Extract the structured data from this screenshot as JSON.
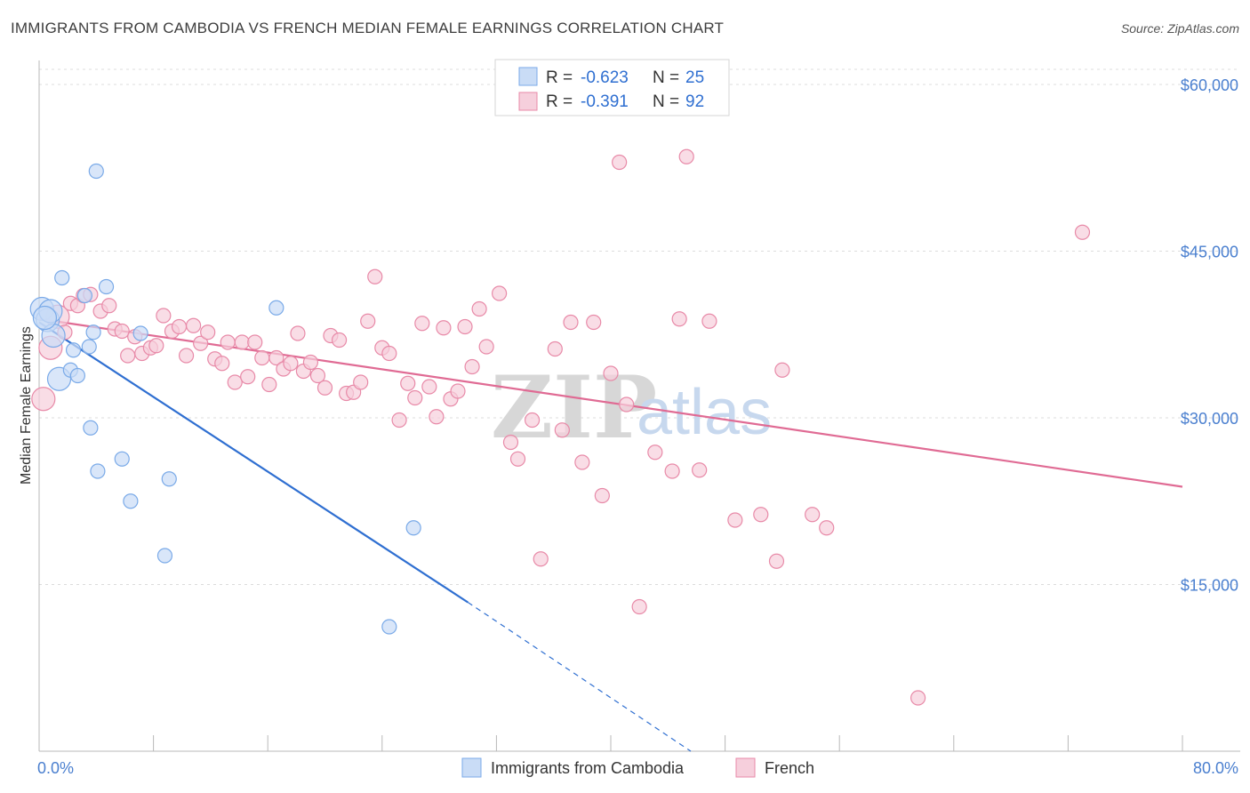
{
  "title": "IMMIGRANTS FROM CAMBODIA VS FRENCH MEDIAN FEMALE EARNINGS CORRELATION CHART",
  "source": "Source: ZipAtlas.com",
  "colors": {
    "blue": "#7aaae8",
    "blue_fill": "#c9dcf6",
    "blue_line": "#2f6fd1",
    "pink": "#e88aa8",
    "pink_fill": "#f6cfdc",
    "pink_line": "#e06b94",
    "axis_text": "#4a7fcf",
    "grid": "#dcdcdc"
  },
  "legend": {
    "rows": [
      {
        "r_label": "R =",
        "r_value": "-0.623",
        "n_label": "N =",
        "n_value": "25",
        "color": "blue"
      },
      {
        "r_label": "R =",
        "r_value": "-0.391",
        "n_label": "N =",
        "n_value": "92",
        "color": "pink"
      }
    ]
  },
  "watermark": {
    "zip": "ZIP",
    "atlas": "atlas"
  },
  "chart_data": {
    "type": "scatter",
    "xlabel": "",
    "ylabel": "Median Female Earnings",
    "xlim": [
      0,
      80
    ],
    "ylim": [
      0,
      62000
    ],
    "x_tick_labels": [
      "0.0%",
      "80.0%"
    ],
    "y_ticks": [
      15000,
      30000,
      45000,
      60000
    ],
    "y_tick_labels": [
      "$15,000",
      "$30,000",
      "$45,000",
      "$60,000"
    ],
    "grid": true,
    "series": [
      {
        "name": "Immigrants from Cambodia",
        "color": "blue",
        "points": [
          [
            0.2,
            39800
          ],
          [
            0.6,
            38800
          ],
          [
            0.8,
            39600
          ],
          [
            1.0,
            37400
          ],
          [
            1.4,
            33500
          ],
          [
            1.6,
            42600
          ],
          [
            2.2,
            34300
          ],
          [
            2.4,
            36100
          ],
          [
            2.7,
            33800
          ],
          [
            3.2,
            41000
          ],
          [
            3.5,
            36400
          ],
          [
            3.6,
            29100
          ],
          [
            3.8,
            37700
          ],
          [
            4.0,
            52200
          ],
          [
            4.1,
            25200
          ],
          [
            4.7,
            41800
          ],
          [
            5.8,
            26300
          ],
          [
            6.4,
            22500
          ],
          [
            7.1,
            37600
          ],
          [
            8.8,
            17600
          ],
          [
            9.1,
            24500
          ],
          [
            16.6,
            39900
          ],
          [
            24.5,
            11200
          ],
          [
            26.2,
            20100
          ],
          [
            0.4,
            39000
          ]
        ],
        "trend": {
          "x0": 0,
          "y0": 38600,
          "x1": 30,
          "y1": 13400,
          "dash_to_x": 45.6,
          "dash_to_y": 0
        }
      },
      {
        "name": "French",
        "color": "pink",
        "points": [
          [
            0.3,
            31700
          ],
          [
            0.8,
            36300
          ],
          [
            1.3,
            39100
          ],
          [
            1.8,
            37700
          ],
          [
            2.2,
            40300
          ],
          [
            2.7,
            40100
          ],
          [
            3.1,
            41000
          ],
          [
            3.6,
            41100
          ],
          [
            4.3,
            39600
          ],
          [
            4.9,
            40100
          ],
          [
            5.3,
            38000
          ],
          [
            5.8,
            37800
          ],
          [
            6.2,
            35600
          ],
          [
            6.7,
            37300
          ],
          [
            7.2,
            35800
          ],
          [
            7.8,
            36300
          ],
          [
            8.2,
            36500
          ],
          [
            8.7,
            39200
          ],
          [
            9.3,
            37800
          ],
          [
            9.8,
            38200
          ],
          [
            10.3,
            35600
          ],
          [
            10.8,
            38300
          ],
          [
            11.3,
            36700
          ],
          [
            11.8,
            37700
          ],
          [
            12.3,
            35300
          ],
          [
            12.8,
            34900
          ],
          [
            13.2,
            36800
          ],
          [
            13.7,
            33200
          ],
          [
            14.2,
            36800
          ],
          [
            14.6,
            33700
          ],
          [
            15.1,
            36800
          ],
          [
            15.6,
            35400
          ],
          [
            16.1,
            33000
          ],
          [
            16.6,
            35400
          ],
          [
            17.1,
            34400
          ],
          [
            17.6,
            34900
          ],
          [
            18.1,
            37600
          ],
          [
            18.5,
            34200
          ],
          [
            19.0,
            35000
          ],
          [
            19.5,
            33800
          ],
          [
            20.0,
            32700
          ],
          [
            20.4,
            37400
          ],
          [
            21.0,
            37000
          ],
          [
            21.5,
            32200
          ],
          [
            22.0,
            32300
          ],
          [
            22.5,
            33200
          ],
          [
            23.0,
            38700
          ],
          [
            23.5,
            42700
          ],
          [
            24.0,
            36300
          ],
          [
            24.5,
            35800
          ],
          [
            25.2,
            29800
          ],
          [
            25.8,
            33100
          ],
          [
            26.3,
            31800
          ],
          [
            26.8,
            38500
          ],
          [
            27.3,
            32800
          ],
          [
            27.8,
            30100
          ],
          [
            28.3,
            38100
          ],
          [
            28.8,
            31700
          ],
          [
            29.3,
            32400
          ],
          [
            29.8,
            38200
          ],
          [
            30.3,
            34600
          ],
          [
            30.8,
            39800
          ],
          [
            31.3,
            36400
          ],
          [
            32.2,
            41200
          ],
          [
            33.0,
            27800
          ],
          [
            33.5,
            26300
          ],
          [
            34.5,
            29800
          ],
          [
            35.1,
            17300
          ],
          [
            36.1,
            36200
          ],
          [
            36.6,
            28900
          ],
          [
            37.2,
            38600
          ],
          [
            38.0,
            26000
          ],
          [
            38.8,
            38600
          ],
          [
            39.4,
            23000
          ],
          [
            40.0,
            34000
          ],
          [
            40.6,
            53000
          ],
          [
            41.1,
            31200
          ],
          [
            42.0,
            13000
          ],
          [
            43.1,
            26900
          ],
          [
            44.3,
            25200
          ],
          [
            44.8,
            38900
          ],
          [
            45.3,
            53500
          ],
          [
            46.2,
            25300
          ],
          [
            46.9,
            38700
          ],
          [
            48.7,
            20800
          ],
          [
            50.5,
            21300
          ],
          [
            51.6,
            17100
          ],
          [
            52.0,
            34300
          ],
          [
            54.1,
            21300
          ],
          [
            55.1,
            20100
          ],
          [
            61.5,
            4800
          ],
          [
            73.0,
            46700
          ]
        ],
        "trend": {
          "x0": 0,
          "y0": 38900,
          "x1": 80,
          "y1": 23800
        }
      }
    ]
  }
}
